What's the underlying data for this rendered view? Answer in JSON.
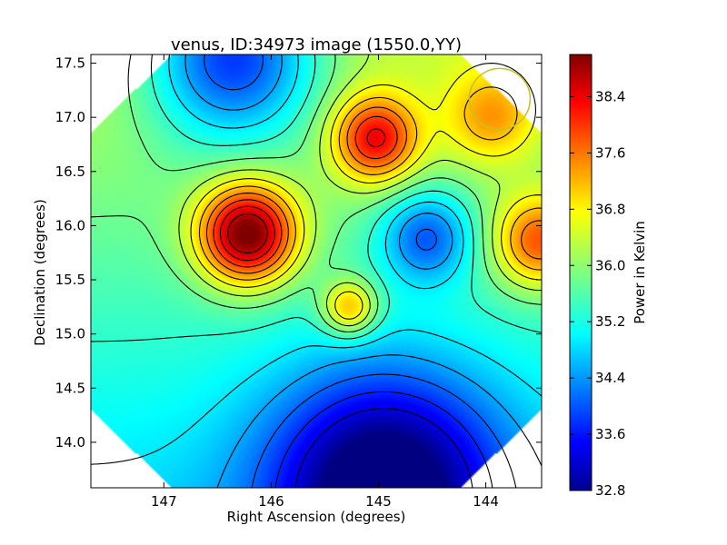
{
  "chart_data": {
    "type": "heatmap",
    "title": "venus, ID:34973 image (1550.0,YY)",
    "xlabel": "Right Ascension (degrees)",
    "ylabel": "Declination (degrees)",
    "colorbar_label": "Power in Kelvin",
    "xlim": [
      147.68,
      143.48
    ],
    "ylim": [
      13.58,
      17.58
    ],
    "x_ticks": [
      147,
      146,
      145,
      144
    ],
    "x_tick_labels": [
      "147",
      "146",
      "145",
      "144"
    ],
    "y_ticks": [
      14.0,
      14.5,
      15.0,
      15.5,
      16.0,
      16.5,
      17.0,
      17.5
    ],
    "y_tick_labels": [
      "14.0",
      "14.5",
      "15.0",
      "15.5",
      "16.0",
      "16.5",
      "17.0",
      "17.5"
    ],
    "colorbar_range": [
      32.8,
      39.0
    ],
    "colorbar_ticks": [
      32.8,
      33.6,
      34.4,
      35.2,
      36.0,
      36.8,
      37.6,
      38.4
    ],
    "colorbar_tick_labels": [
      "32.8",
      "33.6",
      "34.4",
      "35.2",
      "36.0",
      "36.8",
      "37.6",
      "38.4"
    ],
    "colormap": "jet",
    "background": 35.6,
    "features": [
      {
        "ra": 146.22,
        "dec": 15.92,
        "peak": 39.0,
        "kind": "maximum"
      },
      {
        "ra": 145.03,
        "dec": 16.8,
        "peak": 37.9,
        "kind": "maximum"
      },
      {
        "ra": 145.27,
        "dec": 15.24,
        "peak": 37.3,
        "kind": "maximum"
      },
      {
        "ra": 143.5,
        "dec": 15.85,
        "peak": 37.6,
        "kind": "maximum"
      },
      {
        "ra": 143.95,
        "dec": 17.0,
        "peak": 36.8,
        "kind": "maximum"
      },
      {
        "ra": 146.35,
        "dec": 17.58,
        "peak": 33.2,
        "kind": "minimum"
      },
      {
        "ra": 144.95,
        "dec": 13.6,
        "peak": 32.8,
        "kind": "minimum"
      },
      {
        "ra": 144.55,
        "dec": 15.9,
        "peak": 34.0,
        "kind": "minimum"
      }
    ],
    "contour_levels": [
      33.4,
      33.8,
      34.2,
      34.6,
      35.0,
      35.4,
      35.8,
      36.2,
      36.6,
      37.0,
      37.4,
      37.8,
      38.2,
      38.6
    ],
    "beam_marker": {
      "ra": 143.87,
      "dec": 17.17,
      "radius_deg": 0.33,
      "color": "#c8c020"
    },
    "grid": false
  },
  "colors": {
    "axes_frame": "#000000",
    "beam_circle": "#c8c020"
  }
}
